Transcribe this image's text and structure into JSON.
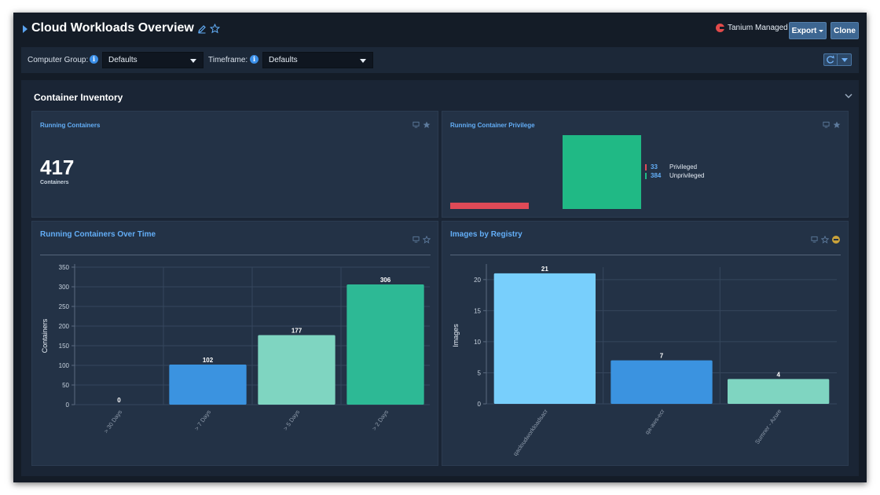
{
  "header": {
    "title": "Cloud Workloads Overview",
    "managed_label": "Tanium Managed",
    "export_label": "Export",
    "clone_label": "Clone"
  },
  "filters": {
    "computer_group_label": "Computer Group:",
    "computer_group_value": "Defaults",
    "timeframe_label": "Timeframe:",
    "timeframe_value": "Defaults"
  },
  "section": {
    "title": "Container Inventory"
  },
  "panels": {
    "running_containers": {
      "title": "Running Containers",
      "value": "417",
      "label": "Containers"
    },
    "privilege": {
      "title": "Running Container Privilege",
      "legend": [
        {
          "value": "33",
          "name": "Privileged",
          "color": "#e04a57"
        },
        {
          "value": "384",
          "name": "Unprivileged",
          "color": "#20b985"
        }
      ]
    },
    "over_time": {
      "title": "Running Containers Over Time"
    },
    "registry": {
      "title": "Images by Registry"
    }
  },
  "colors": {
    "accent": "#63aef7",
    "privileged": "#e04a57",
    "unprivileged": "#20b985"
  },
  "chart_data": [
    {
      "type": "bar",
      "title": "Running Container Privilege",
      "categories": [
        "Privileged",
        "Unprivileged"
      ],
      "values": [
        33,
        384
      ],
      "colors": [
        "#e04a57",
        "#20b985"
      ],
      "legend": "right"
    },
    {
      "type": "bar",
      "title": "Running Containers Over Time",
      "categories": [
        "> 30 Days",
        "> 7 Days",
        "> 5 Days",
        "> 2 Days"
      ],
      "values": [
        0,
        102,
        177,
        306
      ],
      "colors": [
        "#3b93e0",
        "#3b93e0",
        "#7fd5c1",
        "#2db995"
      ],
      "ylabel": "Containers",
      "ylim": [
        0,
        350
      ],
      "yticks": [
        0,
        50,
        100,
        150,
        200,
        250,
        300,
        350
      ],
      "grid": true
    },
    {
      "type": "bar",
      "title": "Images by Registry",
      "categories": [
        "qacloudworkloadsacr",
        "qa-aws-ecr",
        "Sumner - Azure"
      ],
      "values": [
        21,
        7,
        4
      ],
      "colors": [
        "#78cffc",
        "#3b93e0",
        "#7fd5c1"
      ],
      "ylabel": "Images",
      "ylim": [
        0,
        22
      ],
      "yticks": [
        0,
        5,
        10,
        15,
        20
      ],
      "grid": true
    }
  ]
}
